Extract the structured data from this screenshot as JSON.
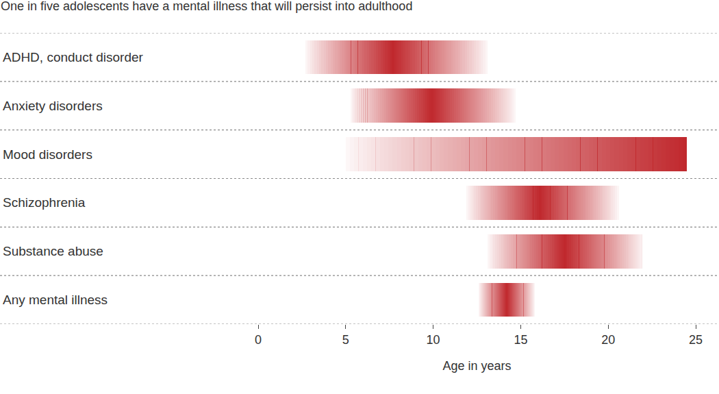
{
  "chart_data": {
    "type": "range",
    "title": "One in five adolescents have a mental illness that will persist into adulthood",
    "xlabel": "Age in years",
    "orientation": "horizontal",
    "categories": [
      "ADHD, conduct disorder",
      "Anxiety disorders",
      "Mood disorders",
      "Schizophrenia",
      "Substance abuse",
      "Any mental illness"
    ],
    "starts": [
      2.7,
      5.3,
      5.0,
      11.9,
      13.1,
      12.6
    ],
    "peaks": [
      7.7,
      9.9,
      24.5,
      16.1,
      17.5,
      14.2
    ],
    "ends": [
      13.1,
      14.7,
      24.5,
      20.6,
      22.0,
      15.8
    ],
    "color": "#c0282d",
    "xlim": [
      0,
      25
    ],
    "xticks": [
      0,
      5,
      10,
      15,
      20,
      25
    ]
  }
}
